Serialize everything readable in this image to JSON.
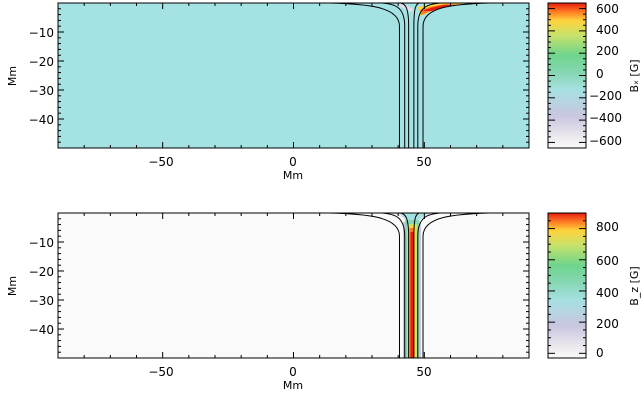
{
  "charts": {
    "top": {
      "ylabel": "Mm",
      "xlabel": "Mm",
      "cbar_label": "Bₓ [G]",
      "x_ticks": [
        "−50",
        "0",
        "50"
      ],
      "y_ticks": [
        "−10",
        "−20",
        "−30",
        "−40"
      ],
      "cbar_ticks": [
        "600",
        "400",
        "200",
        "0",
        "−200",
        "−400",
        "−600"
      ]
    },
    "bottom": {
      "ylabel": "Mm",
      "xlabel": "Mm",
      "cbar_label": "B_z [G]",
      "x_ticks": [
        "−50",
        "0",
        "50"
      ],
      "y_ticks": [
        "−10",
        "−20",
        "−30",
        "−40"
      ],
      "cbar_ticks": [
        "800",
        "600",
        "400",
        "200",
        "0"
      ]
    }
  },
  "chart_data": [
    {
      "type": "heatmap",
      "xlabel": "Mm",
      "ylabel": "Mm",
      "xlim": [
        -90,
        90
      ],
      "ylim": [
        -50,
        0
      ],
      "x_ticks": [
        -50,
        0,
        50
      ],
      "y_ticks": [
        -10,
        -20,
        -30,
        -40
      ],
      "colorbar": {
        "label": "Bₓ [G]",
        "range": [
          -650,
          650
        ],
        "ticks": [
          600,
          400,
          200,
          0,
          -200,
          -400,
          -600
        ]
      },
      "background_value": 0,
      "field_lines_x_at_depth": [
        40.5,
        42.5,
        44,
        46,
        47.5,
        49.5
      ],
      "field_lines_x_at_surface": [
        14,
        34,
        41,
        48,
        56,
        75
      ]
    },
    {
      "type": "heatmap",
      "xlabel": "Mm",
      "ylabel": "Mm",
      "xlim": [
        -90,
        90
      ],
      "ylim": [
        -50,
        0
      ],
      "x_ticks": [
        -50,
        0,
        50
      ],
      "y_ticks": [
        -10,
        -20,
        -30,
        -40
      ],
      "colorbar": {
        "label": "B_z [G]",
        "range": [
          -30,
          900
        ],
        "ticks": [
          800,
          600,
          400,
          200,
          0
        ]
      },
      "background_value": 0,
      "peak_value": 880,
      "peak_x": 45,
      "field_lines_x_at_depth": [
        40.5,
        42.5,
        44,
        46,
        47.5,
        49.5
      ],
      "field_lines_x_at_surface": [
        14,
        34,
        41,
        48,
        56,
        75
      ]
    }
  ]
}
